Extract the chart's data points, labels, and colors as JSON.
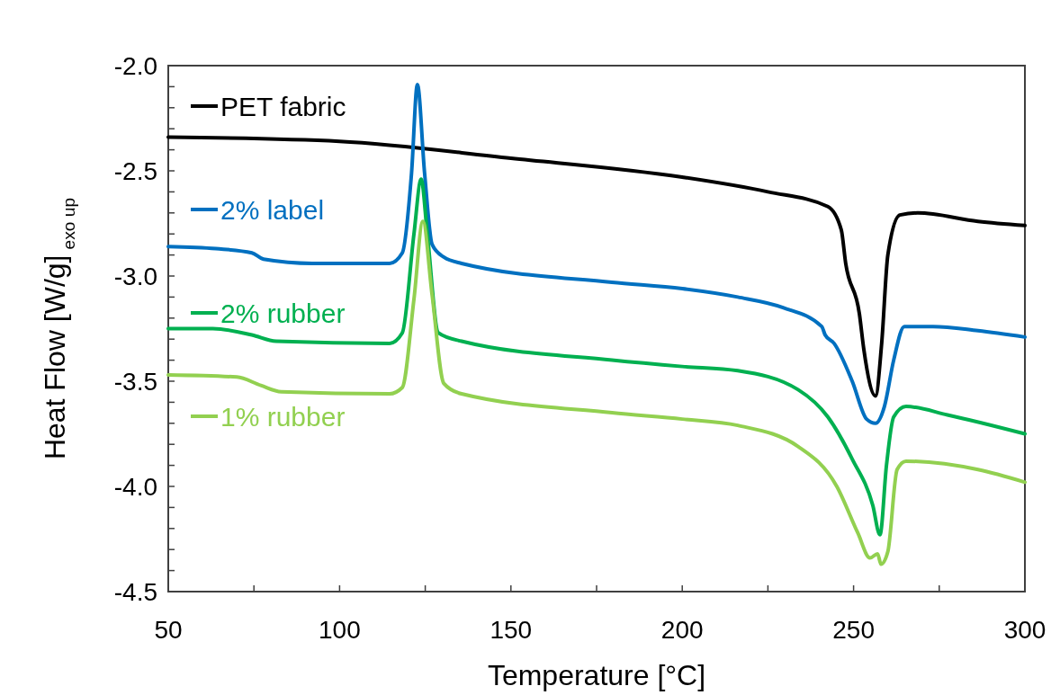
{
  "chart_data": {
    "type": "line",
    "xlabel": "Temperature [°C]",
    "ylabel": "Heat Flow [W/g]$_{exo up}$",
    "xlim": [
      50,
      300
    ],
    "ylim": [
      -4.5,
      -2.0
    ],
    "xticks": [
      50,
      {
        "value": 75,
        "label": null
      },
      100,
      {
        "value": 125,
        "label": null
      },
      150,
      {
        "value": 175,
        "label": null
      },
      200,
      {
        "value": 225,
        "label": null
      },
      250,
      {
        "value": 275,
        "label": null
      },
      300
    ],
    "yticks": [
      {
        "value": -4.5,
        "label": "-4.5"
      },
      {
        "value": -4.4,
        "label": null
      },
      {
        "value": -4.3,
        "label": null
      },
      {
        "value": -4.2,
        "label": null
      },
      {
        "value": -4.1,
        "label": null
      },
      {
        "value": -4.0,
        "label": "-4.0"
      },
      {
        "value": -3.9,
        "label": null
      },
      {
        "value": -3.8,
        "label": null
      },
      {
        "value": -3.7,
        "label": null
      },
      {
        "value": -3.6,
        "label": null
      },
      {
        "value": -3.5,
        "label": "-3.5"
      },
      {
        "value": -3.4,
        "label": null
      },
      {
        "value": -3.3,
        "label": null
      },
      {
        "value": -3.2,
        "label": null
      },
      {
        "value": -3.1,
        "label": null
      },
      {
        "value": -3.0,
        "label": "-3.0"
      },
      {
        "value": -2.9,
        "label": null
      },
      {
        "value": -2.8,
        "label": null
      },
      {
        "value": -2.7,
        "label": null
      },
      {
        "value": -2.6,
        "label": null
      },
      {
        "value": -2.5,
        "label": "-2.5"
      },
      {
        "value": -2.4,
        "label": null
      },
      {
        "value": -2.3,
        "label": null
      },
      {
        "value": -2.2,
        "label": null
      },
      {
        "value": -2.1,
        "label": null
      },
      {
        "value": -2.0,
        "label": "-2.0"
      }
    ],
    "grid": false,
    "legend": "top left",
    "marker": "none",
    "line_style": "solid",
    "series": [
      {
        "name": "PET fabric",
        "color": "#000000",
        "x": [
          50,
          100,
          150,
          200,
          225,
          242.5,
          246.4,
          247.7,
          251.7,
          253,
          256.4,
          258.2,
          260,
          263.5,
          268.7,
          286.3,
          300
        ],
        "values": [
          -2.34,
          -2.36,
          -2.44,
          -2.53,
          -2.6,
          -2.67,
          -2.78,
          -2.94,
          -3.18,
          -3.35,
          -3.57,
          -3.32,
          -2.9,
          -2.71,
          -2.7,
          -2.74,
          -2.76
        ]
      },
      {
        "name": "2% label",
        "color": "#0070c0",
        "x": [
          50,
          63.9,
          74.4,
          77.8,
          92,
          114.6,
          118.3,
          121,
          122.7,
          124.8,
          127,
          130.4,
          135.6,
          179.5,
          200,
          216.2,
          229.4,
          240.7,
          241.7,
          244.3,
          249.6,
          253.8,
          256.4,
          259,
          261.7,
          264.8,
          273.2,
          286.3,
          300
        ],
        "values": [
          -2.86,
          -2.87,
          -2.89,
          -2.92,
          -2.94,
          -2.94,
          -2.89,
          -2.51,
          -2.09,
          -2.51,
          -2.85,
          -2.91,
          -2.94,
          -3.03,
          -3.06,
          -3.1,
          -3.15,
          -3.24,
          -3.28,
          -3.32,
          -3.5,
          -3.68,
          -3.7,
          -3.62,
          -3.4,
          -3.24,
          -3.24,
          -3.26,
          -3.29
        ]
      },
      {
        "name": "2% rubber",
        "color": "#00b050",
        "x": [
          50,
          63,
          74.4,
          81.5,
          114.6,
          118.3,
          121.7,
          123.8,
          125.6,
          128.8,
          135.6,
          179.5,
          200,
          216.2,
          233.8,
          242.5,
          249.6,
          255.6,
          257.7,
          259.6,
          261.7,
          265.3,
          277.4,
          300
        ],
        "values": [
          -3.25,
          -3.25,
          -3.28,
          -3.31,
          -3.32,
          -3.27,
          -2.8,
          -2.54,
          -2.8,
          -3.27,
          -3.31,
          -3.4,
          -3.43,
          -3.45,
          -3.54,
          -3.67,
          -3.87,
          -4.09,
          -4.23,
          -3.9,
          -3.67,
          -3.62,
          -3.66,
          -3.75
        ]
      },
      {
        "name": "1% rubber",
        "color": "#92d050",
        "x": [
          50,
          70,
          77,
          83,
          114.6,
          118.3,
          121.7,
          124.3,
          127,
          130.4,
          135.6,
          179.5,
          200,
          216.2,
          233.8,
          245.1,
          251.2,
          254.8,
          257,
          258,
          260,
          262.7,
          265.3,
          286.3,
          300
        ],
        "values": [
          -3.47,
          -3.48,
          -3.52,
          -3.55,
          -3.56,
          -3.53,
          -3.11,
          -2.74,
          -3.09,
          -3.51,
          -3.56,
          -3.65,
          -3.68,
          -3.71,
          -3.81,
          -4.0,
          -4.22,
          -4.34,
          -4.32,
          -4.37,
          -4.31,
          -3.92,
          -3.88,
          -3.92,
          -3.98
        ]
      }
    ]
  }
}
